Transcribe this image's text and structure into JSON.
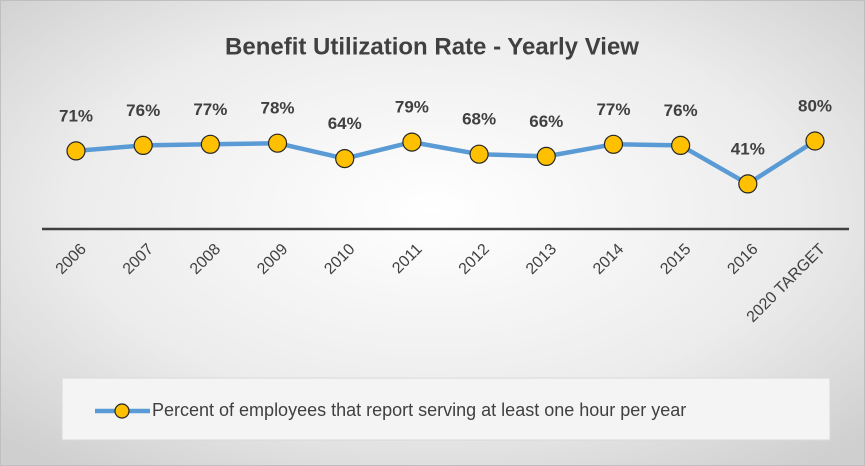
{
  "chart_data": {
    "type": "line",
    "title": "Benefit Utilization Rate - Yearly View",
    "categories": [
      "2006",
      "2007",
      "2008",
      "2009",
      "2010",
      "2011",
      "2012",
      "2013",
      "2014",
      "2015",
      "2016",
      "2020 TARGET"
    ],
    "series": [
      {
        "name": "Percent of employees that report serving at least one hour per year",
        "color": "#5b9bd5",
        "marker_color": "#ffc000",
        "values": [
          71,
          76,
          77,
          78,
          64,
          79,
          68,
          66,
          77,
          76,
          41,
          80
        ],
        "value_labels": [
          "71%",
          "76%",
          "77%",
          "78%",
          "64%",
          "79%",
          "68%",
          "66%",
          "77%",
          "76%",
          "41%",
          "80%"
        ]
      }
    ],
    "ylim": [
      0,
      100
    ],
    "legend": "bottom"
  }
}
